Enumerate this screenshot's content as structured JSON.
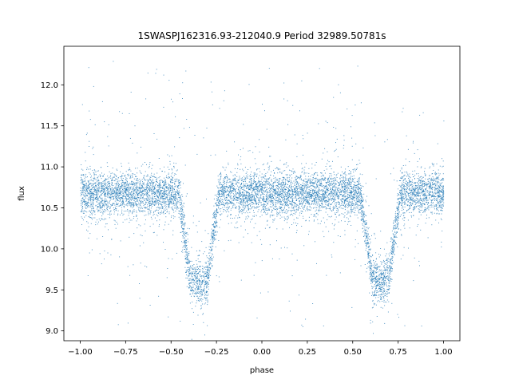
{
  "chart_data": {
    "type": "scatter",
    "title": "1SWASPJ162316.93-212040.9 Period 32989.50781s",
    "xlabel": "phase",
    "ylabel": "flux",
    "xlim": [
      -1.09,
      1.09
    ],
    "ylim": [
      8.88,
      12.47
    ],
    "xticks": [
      -1.0,
      -0.75,
      -0.5,
      -0.25,
      0.0,
      0.25,
      0.5,
      0.75,
      1.0
    ],
    "xtick_labels": [
      "−1.00",
      "−0.75",
      "−0.50",
      "−0.25",
      "0.00",
      "0.25",
      "0.50",
      "0.75",
      "1.00"
    ],
    "yticks": [
      9.0,
      9.5,
      10.0,
      10.5,
      11.0,
      11.5,
      12.0
    ],
    "ytick_labels": [
      "9.0",
      "9.5",
      "10.0",
      "10.5",
      "11.0",
      "11.5",
      "12.0"
    ],
    "grid": false,
    "legend": "none",
    "point_color": "#1f77b4",
    "series": [
      {
        "baseline_flux": 10.68,
        "scatter_std": 0.13,
        "phase_range": [
          -1.0,
          1.0
        ],
        "eclipses": [
          {
            "center_phase": -0.35,
            "min_flux": 9.6,
            "half_width_top": 0.11,
            "half_width_bottom": 0.045
          },
          {
            "center_phase": 0.65,
            "min_flux": 9.62,
            "half_width_top": 0.11,
            "half_width_bottom": 0.045
          }
        ],
        "outlier_range": [
          9.05,
          12.3
        ]
      }
    ]
  }
}
